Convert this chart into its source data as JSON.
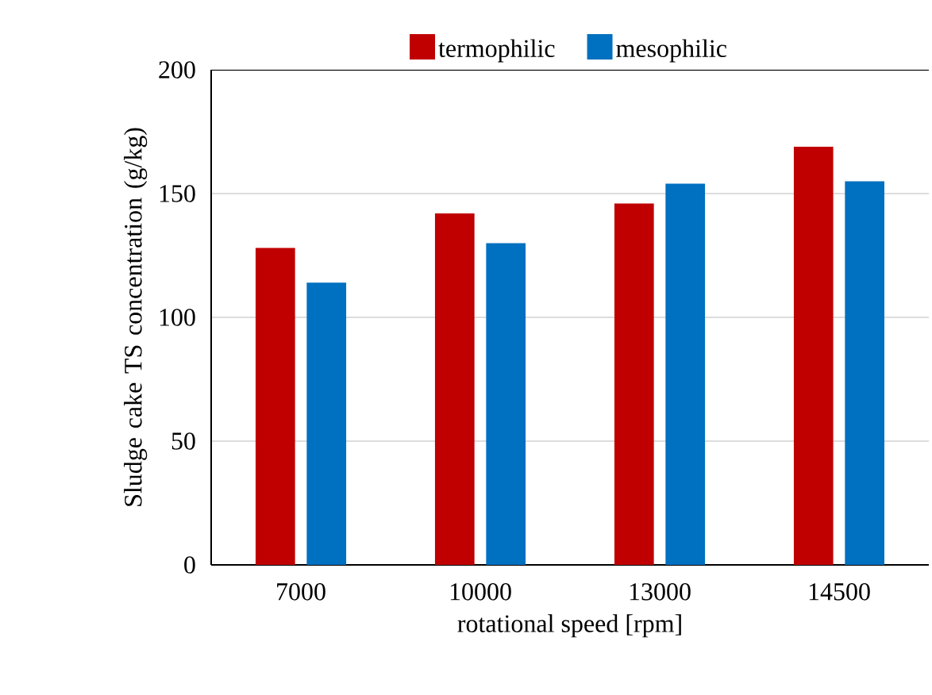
{
  "chart_data": {
    "type": "bar",
    "xlabel": "rotational speed [rpm]",
    "ylabel": "Sludge cake TS concentration (g/kg)",
    "categories": [
      "7000",
      "10000",
      "13000",
      "14500"
    ],
    "series": [
      {
        "name": "termophilic",
        "color": "#c00000",
        "values": [
          128,
          142,
          146,
          169
        ]
      },
      {
        "name": "mesophilic",
        "color": "#0070c0",
        "values": [
          114,
          130,
          154,
          155
        ]
      }
    ],
    "ylim": [
      0,
      200
    ],
    "yticks": [
      0,
      50,
      100,
      150,
      200
    ],
    "grid": "y",
    "legend": "top"
  }
}
